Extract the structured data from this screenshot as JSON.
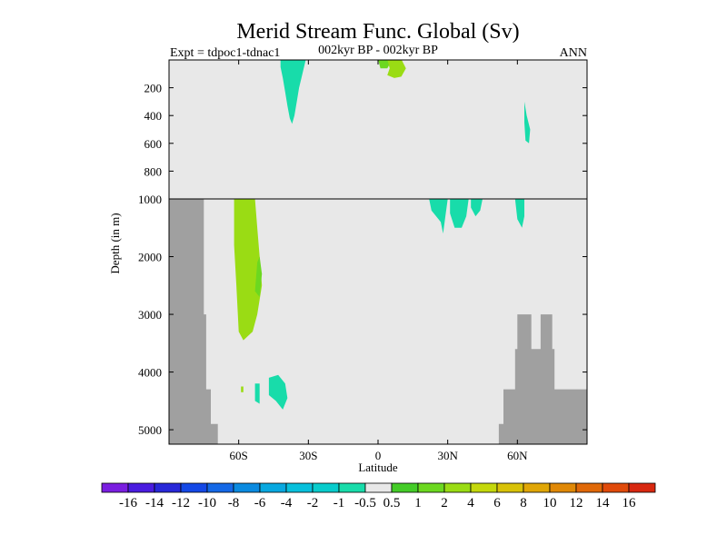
{
  "chart_data": {
    "type": "heatmap",
    "title": "Merid Stream Func. Global (Sv)",
    "left_label": "Expt = tdpoc1-tdnac1",
    "center_label": "002kyr BP - 002kyr BP",
    "right_label": "ANN",
    "xlabel": "Latitude",
    "ylabel": "Depth (in m)",
    "x_range": [
      -90,
      90
    ],
    "x_ticks": [
      {
        "value": -60,
        "label": "60S"
      },
      {
        "value": -30,
        "label": "30S"
      },
      {
        "value": 0,
        "label": "0"
      },
      {
        "value": 30,
        "label": "30N"
      },
      {
        "value": 60,
        "label": "60N"
      }
    ],
    "y_upper_range": [
      0,
      1000
    ],
    "y_upper_ticks": [
      {
        "value": 200,
        "label": "200"
      },
      {
        "value": 400,
        "label": "400"
      },
      {
        "value": 600,
        "label": "600"
      },
      {
        "value": 800,
        "label": "800"
      }
    ],
    "y_lower_range": [
      1000,
      5250
    ],
    "y_lower_ticks": [
      {
        "value": 1000,
        "label": "1000"
      },
      {
        "value": 2000,
        "label": "2000"
      },
      {
        "value": 3000,
        "label": "3000"
      },
      {
        "value": 4000,
        "label": "4000"
      },
      {
        "value": 5000,
        "label": "5000"
      }
    ],
    "background_color": "#e8e8e8",
    "land_color": "#a0a0a0",
    "land_masks": [
      {
        "name": "south-ridge",
        "outline": [
          [
            -90,
            1000
          ],
          [
            -75,
            1000
          ],
          [
            -75,
            3000
          ],
          [
            -74,
            3000
          ],
          [
            -74,
            4300
          ],
          [
            -72,
            4300
          ],
          [
            -72,
            4900
          ],
          [
            -69,
            4900
          ],
          [
            -69,
            5250
          ],
          [
            -90,
            5250
          ]
        ]
      },
      {
        "name": "north-ridge",
        "outline": [
          [
            52,
            5250
          ],
          [
            52,
            4900
          ],
          [
            54,
            4900
          ],
          [
            54,
            4300
          ],
          [
            59,
            4300
          ],
          [
            59,
            3600
          ],
          [
            60,
            3600
          ],
          [
            60,
            3000
          ],
          [
            66,
            3000
          ],
          [
            66,
            3600
          ],
          [
            70,
            3600
          ],
          [
            70,
            3000
          ],
          [
            75,
            3000
          ],
          [
            75,
            3600
          ],
          [
            76,
            3600
          ],
          [
            76,
            4300
          ],
          [
            90,
            4300
          ],
          [
            90,
            5250
          ]
        ]
      }
    ],
    "anomalies": [
      {
        "name": "upper-anomaly-1",
        "value": -1,
        "outline": [
          [
            -42,
            -10
          ],
          [
            -31,
            -10
          ],
          [
            -32,
            60
          ],
          [
            -33,
            130
          ],
          [
            -34,
            200
          ],
          [
            -35,
            300
          ],
          [
            -36,
            400
          ],
          [
            -37,
            460
          ],
          [
            -38,
            420
          ],
          [
            -39,
            330
          ],
          [
            -40,
            230
          ],
          [
            -41,
            130
          ],
          [
            -42,
            50
          ]
        ]
      },
      {
        "name": "upper-anomaly-2",
        "value": 1,
        "outline": [
          [
            0,
            -5
          ],
          [
            4,
            -5
          ],
          [
            5,
            30
          ],
          [
            4,
            60
          ],
          [
            1,
            60
          ]
        ]
      },
      {
        "name": "upper-anomaly-3",
        "value": 2,
        "outline": [
          [
            4,
            -5
          ],
          [
            10,
            -5
          ],
          [
            12,
            60
          ],
          [
            10,
            120
          ],
          [
            7,
            130
          ],
          [
            4,
            110
          ],
          [
            5,
            60
          ]
        ]
      },
      {
        "name": "upper-anomaly-4",
        "value": -1,
        "outline": [
          [
            63,
            300
          ],
          [
            64,
            400
          ],
          [
            65.5,
            500
          ],
          [
            65,
            600
          ],
          [
            63.5,
            580
          ],
          [
            63,
            450
          ]
        ]
      },
      {
        "name": "lower-anomaly-1",
        "value": 2,
        "outline": [
          [
            -62,
            1000
          ],
          [
            -53,
            1000
          ],
          [
            -52,
            1500
          ],
          [
            -51,
            2000
          ],
          [
            -50,
            2500
          ],
          [
            -52,
            3000
          ],
          [
            -54,
            3300
          ],
          [
            -58,
            3450
          ],
          [
            -60,
            3300
          ],
          [
            -61,
            2500
          ],
          [
            -62,
            1800
          ]
        ]
      },
      {
        "name": "lower-anomaly-2",
        "value": 1,
        "outline": [
          [
            -53,
            2600
          ],
          [
            -52,
            2100
          ],
          [
            -51,
            2000
          ],
          [
            -50,
            2300
          ],
          [
            -51,
            2700
          ]
        ]
      },
      {
        "name": "lower-anomaly-3",
        "value": -1,
        "outline": [
          [
            -47,
            4100
          ],
          [
            -43,
            4050
          ],
          [
            -40,
            4200
          ],
          [
            -39,
            4450
          ],
          [
            -41,
            4650
          ],
          [
            -44,
            4500
          ],
          [
            -47,
            4400
          ]
        ]
      },
      {
        "name": "lower-anomaly-4",
        "value": -1,
        "outline": [
          [
            -53,
            4200
          ],
          [
            -51,
            4200
          ],
          [
            -51,
            4550
          ],
          [
            -53,
            4500
          ]
        ]
      },
      {
        "name": "lower-anomaly-5",
        "value": 2,
        "outline": [
          [
            -59,
            4250
          ],
          [
            -58,
            4250
          ],
          [
            -58,
            4350
          ],
          [
            -59,
            4350
          ]
        ]
      },
      {
        "name": "lower-anomaly-6",
        "value": -1,
        "outline": [
          [
            22,
            1000
          ],
          [
            30,
            1000
          ],
          [
            29,
            1300
          ],
          [
            28,
            1600
          ],
          [
            27,
            1400
          ],
          [
            23,
            1200
          ]
        ]
      },
      {
        "name": "lower-anomaly-7",
        "value": -1,
        "outline": [
          [
            31,
            1000
          ],
          [
            39,
            1000
          ],
          [
            38,
            1300
          ],
          [
            36,
            1500
          ],
          [
            33,
            1500
          ],
          [
            31,
            1250
          ]
        ]
      },
      {
        "name": "lower-anomaly-8",
        "value": -1,
        "outline": [
          [
            40,
            1000
          ],
          [
            45,
            1000
          ],
          [
            44,
            1200
          ],
          [
            42,
            1300
          ],
          [
            40,
            1150
          ]
        ]
      },
      {
        "name": "lower-anomaly-9",
        "value": -1,
        "outline": [
          [
            59,
            1000
          ],
          [
            63,
            1000
          ],
          [
            63,
            1300
          ],
          [
            62,
            1500
          ],
          [
            60,
            1350
          ]
        ]
      }
    ],
    "colorbar": {
      "labels": [
        "-16",
        "-14",
        "-12",
        "-10",
        "-8",
        "-6",
        "-4",
        "-2",
        "-1",
        "-0.5",
        "0.5",
        "1",
        "2",
        "4",
        "6",
        "8",
        "10",
        "12",
        "14",
        "16"
      ],
      "colors": [
        "#7a1ee0",
        "#4a1ce0",
        "#2828d8",
        "#1448e6",
        "#1468e6",
        "#0a8ae0",
        "#08a8e0",
        "#08c0dc",
        "#08cccc",
        "#18dcaa",
        "#e8e8e8",
        "#44cc28",
        "#6cd820",
        "#9adc14",
        "#c4d80c",
        "#d8c208",
        "#e0a606",
        "#e08806",
        "#e06808",
        "#e04a0a",
        "#d82810"
      ]
    }
  }
}
